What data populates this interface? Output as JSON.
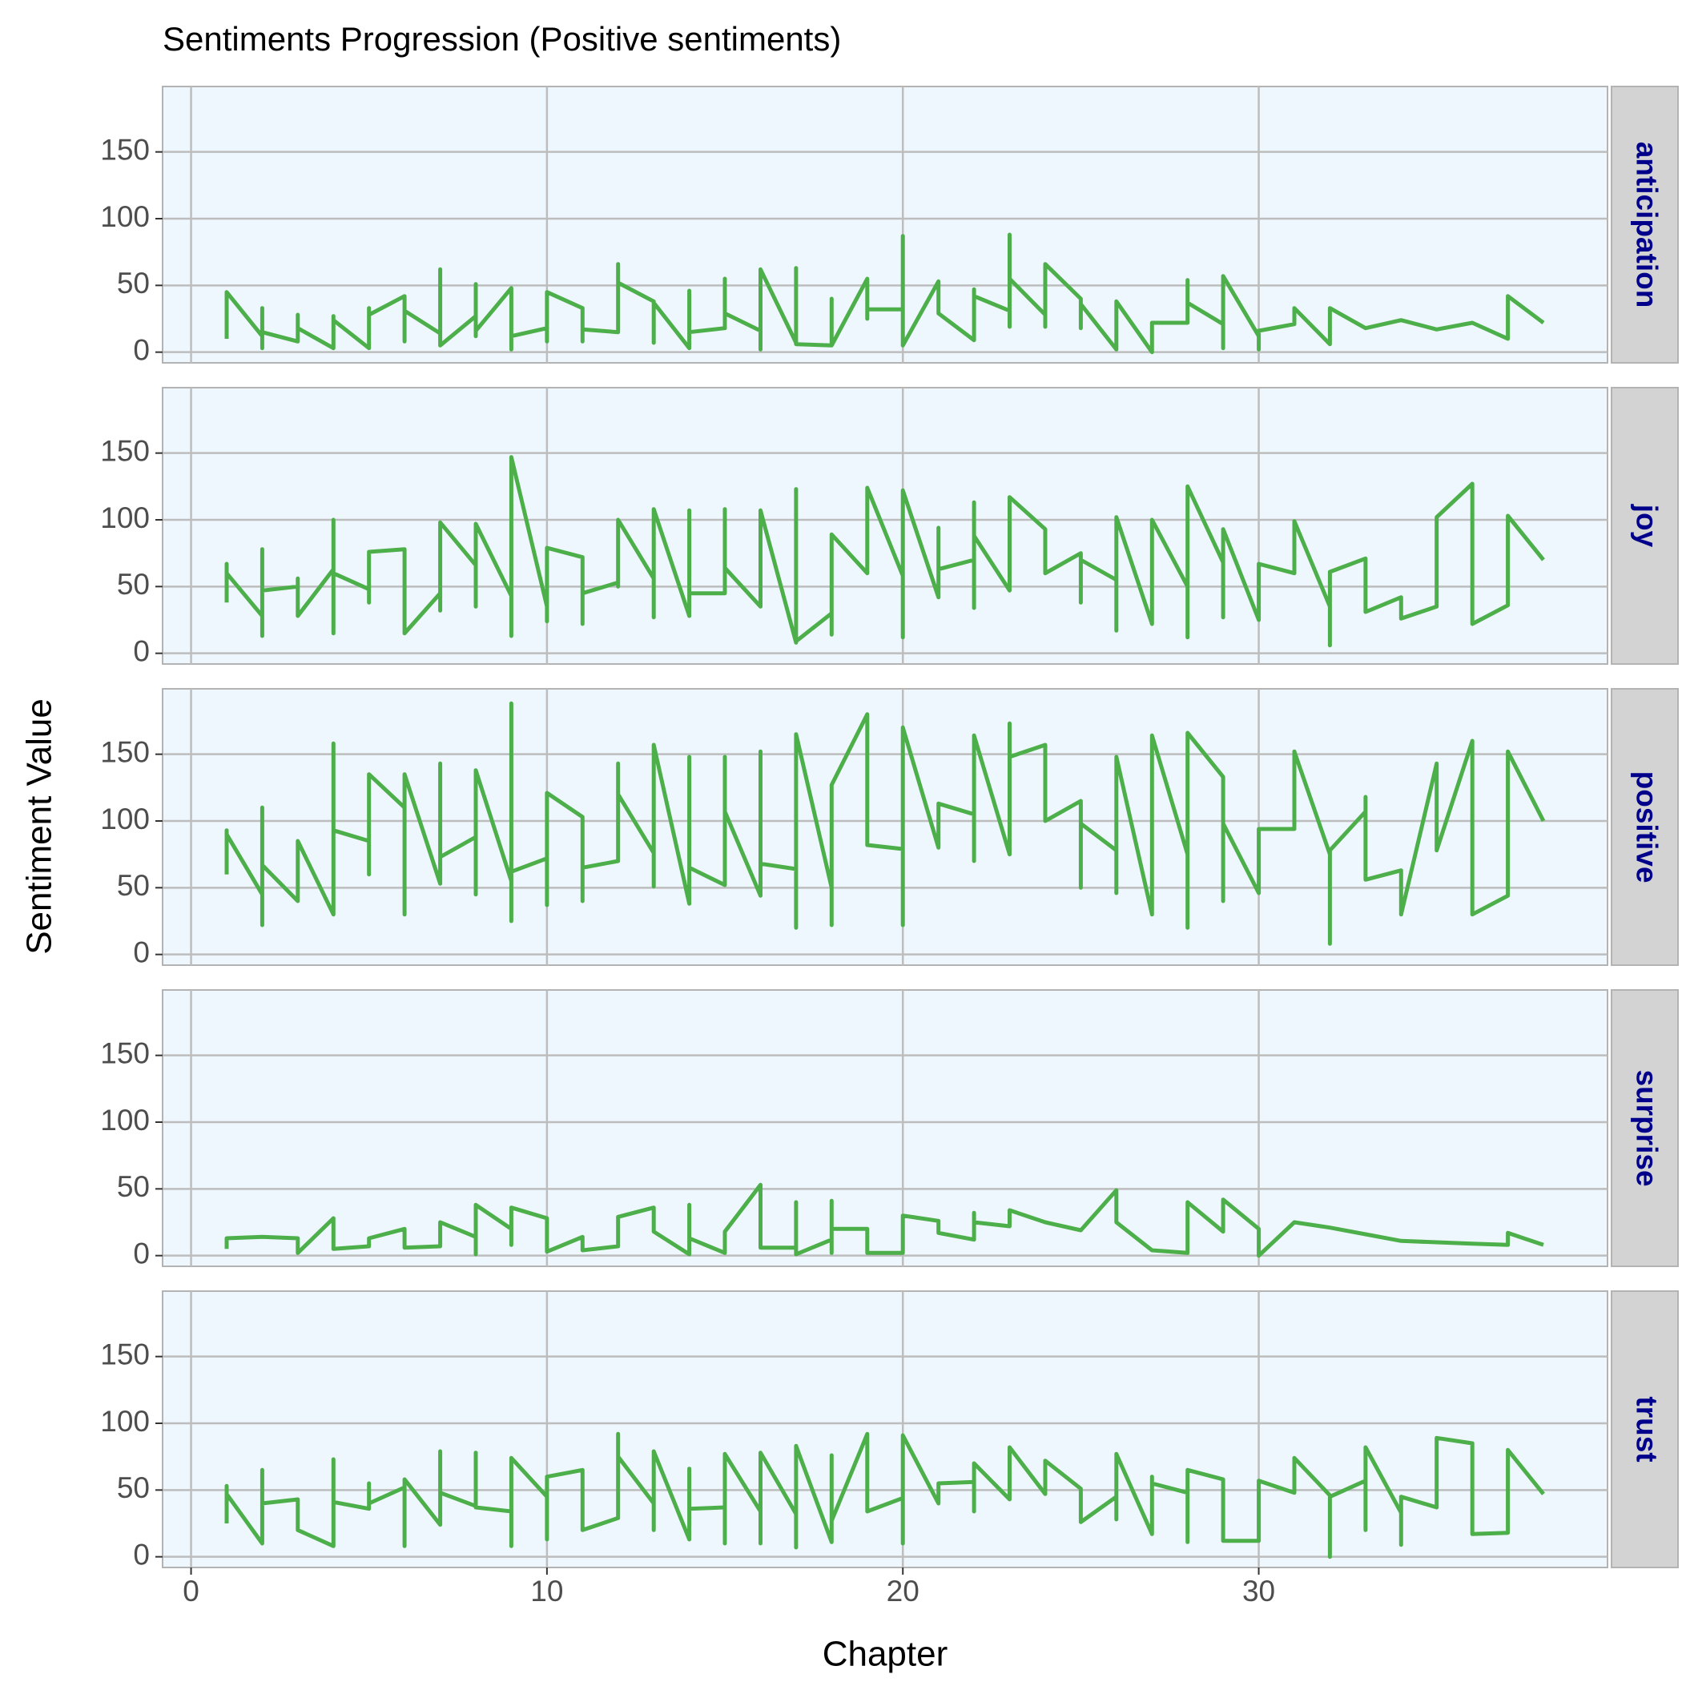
{
  "chart_data": {
    "type": "line",
    "title": "Sentiments Progression (Positive sentiments)",
    "x_label": "Chapter",
    "y_label": "Sentiment Value",
    "xlim": [
      -0.8,
      39.8
    ],
    "xticks": [
      0,
      10,
      20,
      30
    ],
    "ylim": [
      -8,
      199
    ],
    "yticks": [
      0,
      50,
      100,
      150
    ],
    "grid": true,
    "color": "#4daf4a",
    "series": [
      {
        "name": "anticipation",
        "x": [
          1,
          1,
          2,
          2,
          2,
          2,
          3,
          3,
          3,
          4,
          4,
          4,
          5,
          5,
          5,
          6,
          6,
          6,
          7,
          7,
          7,
          8,
          8,
          8,
          8,
          9,
          9,
          9,
          10,
          10,
          10,
          11,
          11,
          11,
          12,
          12,
          12,
          13,
          13,
          13,
          14,
          14,
          14,
          15,
          15,
          15,
          16,
          16,
          16,
          17,
          17,
          17,
          18,
          18,
          18,
          19,
          19,
          19,
          20,
          20,
          20,
          21,
          21,
          22,
          22,
          22,
          23,
          23,
          23,
          23,
          24,
          24,
          24,
          25,
          25,
          25,
          26,
          26,
          27,
          27,
          28,
          28,
          28,
          29,
          29,
          29,
          30,
          30,
          30,
          31,
          31,
          32,
          32,
          33,
          34,
          35,
          36,
          37,
          37,
          38
        ],
        "values": [
          10,
          45,
          12,
          3,
          33,
          15,
          8,
          28,
          18,
          3,
          27,
          24,
          3,
          33,
          28,
          42,
          8,
          31,
          14,
          62,
          5,
          27,
          51,
          12,
          16,
          48,
          2,
          12,
          18,
          8,
          45,
          33,
          8,
          17,
          15,
          66,
          52,
          38,
          7,
          37,
          3,
          46,
          15,
          18,
          55,
          29,
          16,
          2,
          62,
          7,
          63,
          6,
          5,
          40,
          5,
          55,
          25,
          32,
          32,
          87,
          5,
          53,
          29,
          9,
          47,
          42,
          31,
          19,
          88,
          55,
          28,
          19,
          66,
          40,
          18,
          36,
          2,
          38,
          0,
          22,
          22,
          54,
          37,
          21,
          3,
          57,
          12,
          2,
          16,
          21,
          33,
          6,
          33,
          18,
          24,
          17,
          22,
          10,
          42,
          22
        ]
      },
      {
        "name": "joy",
        "x": [
          1,
          1,
          1,
          2,
          2,
          2,
          2,
          3,
          3,
          3,
          4,
          4,
          4,
          4,
          5,
          5,
          5,
          6,
          6,
          7,
          7,
          7,
          8,
          8,
          8,
          9,
          9,
          9,
          10,
          10,
          10,
          11,
          11,
          11,
          12,
          12,
          12,
          13,
          13,
          13,
          14,
          14,
          14,
          15,
          15,
          15,
          16,
          16,
          17,
          17,
          17,
          18,
          18,
          18,
          19,
          19,
          20,
          20,
          20,
          21,
          21,
          21,
          22,
          22,
          22,
          22,
          23,
          23,
          24,
          24,
          25,
          25,
          25,
          26,
          26,
          26,
          27,
          27,
          28,
          28,
          28,
          29,
          29,
          29,
          30,
          30,
          31,
          31,
          32,
          32,
          32,
          33,
          33,
          34,
          34,
          35,
          35,
          36,
          36,
          37,
          37,
          38
        ],
        "values": [
          38,
          67,
          60,
          28,
          78,
          13,
          47,
          50,
          56,
          28,
          63,
          15,
          100,
          60,
          48,
          38,
          76,
          78,
          15,
          45,
          32,
          98,
          66,
          35,
          97,
          43,
          13,
          147,
          35,
          24,
          79,
          72,
          22,
          45,
          53,
          50,
          100,
          56,
          27,
          108,
          28,
          107,
          45,
          45,
          108,
          64,
          35,
          107,
          8,
          123,
          9,
          30,
          14,
          89,
          60,
          124,
          58,
          12,
          122,
          42,
          94,
          63,
          70,
          34,
          113,
          88,
          47,
          117,
          93,
          60,
          75,
          38,
          70,
          55,
          17,
          102,
          22,
          100,
          50,
          12,
          125,
          68,
          27,
          93,
          25,
          67,
          60,
          99,
          35,
          6,
          61,
          71,
          31,
          42,
          26,
          35,
          102,
          127,
          22,
          36,
          103,
          70
        ]
      },
      {
        "name": "positive",
        "x": [
          1,
          1,
          1,
          2,
          2,
          2,
          2,
          3,
          3,
          4,
          4,
          4,
          5,
          5,
          5,
          6,
          6,
          6,
          7,
          7,
          7,
          8,
          8,
          8,
          9,
          9,
          9,
          9,
          10,
          10,
          10,
          11,
          11,
          11,
          12,
          12,
          12,
          13,
          13,
          13,
          14,
          14,
          14,
          15,
          15,
          15,
          16,
          16,
          16,
          17,
          17,
          17,
          18,
          18,
          18,
          19,
          19,
          20,
          20,
          20,
          21,
          21,
          22,
          22,
          22,
          23,
          23,
          23,
          24,
          24,
          25,
          25,
          25,
          26,
          26,
          26,
          27,
          27,
          28,
          28,
          28,
          29,
          29,
          29,
          30,
          30,
          31,
          31,
          32,
          32,
          32,
          33,
          33,
          33,
          34,
          34,
          35,
          35,
          36,
          36,
          37,
          37,
          38
        ],
        "values": [
          60,
          93,
          90,
          45,
          22,
          110,
          67,
          40,
          85,
          30,
          158,
          93,
          85,
          60,
          135,
          110,
          30,
          135,
          53,
          143,
          73,
          88,
          45,
          138,
          55,
          25,
          188,
          62,
          72,
          37,
          121,
          103,
          40,
          65,
          70,
          143,
          120,
          76,
          51,
          157,
          38,
          148,
          65,
          52,
          148,
          107,
          44,
          152,
          68,
          64,
          20,
          165,
          50,
          22,
          127,
          180,
          82,
          79,
          22,
          170,
          80,
          113,
          105,
          70,
          164,
          75,
          173,
          148,
          157,
          100,
          115,
          50,
          98,
          78,
          46,
          148,
          30,
          164,
          75,
          20,
          166,
          133,
          40,
          98,
          46,
          94,
          94,
          152,
          75,
          8,
          78,
          107,
          118,
          56,
          63,
          30,
          143,
          78,
          160,
          30,
          44,
          152,
          100
        ]
      },
      {
        "name": "surprise",
        "x": [
          1,
          1,
          2,
          3,
          3,
          4,
          4,
          5,
          5,
          6,
          6,
          7,
          7,
          8,
          8,
          8,
          9,
          9,
          9,
          10,
          10,
          11,
          11,
          12,
          12,
          13,
          13,
          14,
          14,
          14,
          15,
          15,
          16,
          16,
          17,
          17,
          17,
          18,
          18,
          18,
          18,
          19,
          19,
          20,
          20,
          21,
          21,
          22,
          22,
          22,
          23,
          23,
          24,
          25,
          26,
          26,
          27,
          28,
          28,
          29,
          29,
          30,
          30,
          31,
          32,
          33,
          34,
          35,
          36,
          37,
          37,
          38
        ],
        "values": [
          5,
          13,
          14,
          13,
          2,
          28,
          5,
          7,
          13,
          20,
          6,
          7,
          25,
          14,
          1,
          38,
          20,
          8,
          36,
          28,
          3,
          14,
          4,
          7,
          29,
          36,
          18,
          1,
          38,
          13,
          2,
          18,
          53,
          6,
          6,
          40,
          1,
          12,
          2,
          41,
          20,
          20,
          2,
          2,
          30,
          26,
          17,
          12,
          32,
          25,
          22,
          34,
          25,
          19,
          49,
          25,
          4,
          2,
          40,
          18,
          42,
          20,
          0,
          25,
          21,
          16,
          11,
          10,
          9,
          8,
          17,
          8
        ]
      },
      {
        "name": "trust",
        "x": [
          1,
          1,
          1,
          2,
          2,
          2,
          3,
          3,
          4,
          4,
          4,
          5,
          5,
          5,
          6,
          6,
          6,
          7,
          7,
          7,
          8,
          8,
          8,
          9,
          9,
          9,
          10,
          10,
          10,
          11,
          11,
          12,
          12,
          12,
          13,
          13,
          13,
          14,
          14,
          14,
          15,
          15,
          15,
          16,
          16,
          16,
          17,
          17,
          17,
          18,
          18,
          18,
          19,
          19,
          20,
          20,
          20,
          21,
          21,
          22,
          22,
          22,
          23,
          23,
          24,
          24,
          25,
          25,
          26,
          26,
          26,
          27,
          27,
          27,
          28,
          28,
          28,
          29,
          29,
          30,
          30,
          31,
          31,
          32,
          32,
          32,
          33,
          33,
          33,
          34,
          34,
          34,
          35,
          35,
          36,
          36,
          37,
          37,
          38
        ],
        "values": [
          25,
          53,
          47,
          10,
          65,
          40,
          43,
          20,
          8,
          73,
          41,
          36,
          55,
          40,
          52,
          8,
          58,
          24,
          79,
          48,
          38,
          78,
          37,
          34,
          8,
          74,
          45,
          13,
          60,
          65,
          20,
          29,
          92,
          75,
          40,
          20,
          79,
          13,
          66,
          36,
          37,
          10,
          77,
          34,
          10,
          78,
          32,
          7,
          83,
          11,
          76,
          27,
          92,
          34,
          44,
          10,
          91,
          40,
          55,
          56,
          34,
          70,
          43,
          82,
          47,
          72,
          51,
          26,
          45,
          28,
          77,
          17,
          60,
          55,
          48,
          11,
          65,
          58,
          12,
          12,
          57,
          48,
          74,
          46,
          0,
          45,
          57,
          20,
          82,
          33,
          9,
          45,
          37,
          89,
          85,
          17,
          18,
          80,
          47
        ]
      }
    ]
  }
}
